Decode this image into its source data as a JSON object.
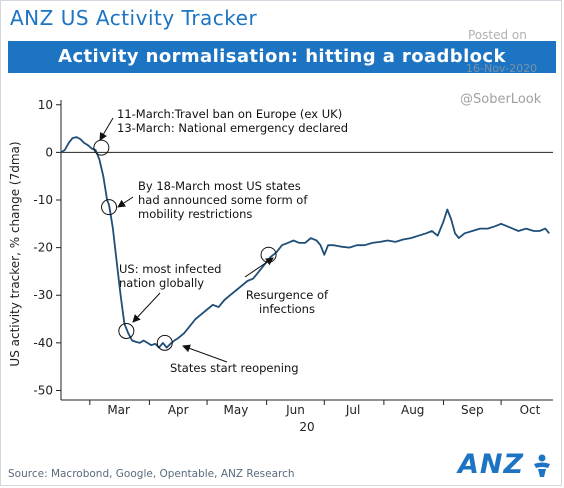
{
  "header": {
    "title": "ANZ US Activity Tracker",
    "banner": "Activity normalisation: hitting a roadblock"
  },
  "watermark": {
    "posted": "Posted on",
    "date": "16-Nov-2020",
    "handle": "@SoberLook"
  },
  "footer": {
    "source": "Source: Macrobond, Google, Opentable, ANZ Research",
    "logo": "ANZ"
  },
  "colors": {
    "brand_blue": "#1c74c2",
    "line": "#1f4e79"
  },
  "chart_data": {
    "type": "line",
    "title": "",
    "xlabel": "20",
    "ylabel": "US activity tracker, % change (7dma)",
    "ylim": [
      -52,
      11
    ],
    "yticks": [
      10,
      0,
      -10,
      -20,
      -30,
      -40,
      -50
    ],
    "ytick_labels": [
      "10",
      "0",
      "-10",
      "-20",
      "-30",
      "-40",
      "-50"
    ],
    "month_labels": [
      "Mar",
      "Apr",
      "May",
      "Jun",
      "Jul",
      "Aug",
      "Sep",
      "Oct"
    ],
    "x_range": [
      "2020-02-15",
      "2020-10-28"
    ],
    "grid": false,
    "series": [
      {
        "name": "",
        "points": [
          [
            "2020-02-15",
            0.0
          ],
          [
            "2020-02-17",
            0.5
          ],
          [
            "2020-02-19",
            2.0
          ],
          [
            "2020-02-21",
            3.0
          ],
          [
            "2020-02-23",
            3.2
          ],
          [
            "2020-02-25",
            2.8
          ],
          [
            "2020-02-27",
            2.0
          ],
          [
            "2020-02-29",
            1.5
          ],
          [
            "2020-03-02",
            0.8
          ],
          [
            "2020-03-04",
            0.5
          ],
          [
            "2020-03-06",
            -1.5
          ],
          [
            "2020-03-08",
            -5.0
          ],
          [
            "2020-03-10",
            -10.0
          ],
          [
            "2020-03-11",
            -11.0
          ],
          [
            "2020-03-12",
            -13.5
          ],
          [
            "2020-03-13",
            -16.0
          ],
          [
            "2020-03-15",
            -23.0
          ],
          [
            "2020-03-17",
            -30.0
          ],
          [
            "2020-03-19",
            -36.0
          ],
          [
            "2020-03-21",
            -38.0
          ],
          [
            "2020-03-23",
            -39.5
          ],
          [
            "2020-03-25",
            -39.8
          ],
          [
            "2020-03-27",
            -40.0
          ],
          [
            "2020-03-29",
            -39.5
          ],
          [
            "2020-03-31",
            -40.0
          ],
          [
            "2020-04-02",
            -40.5
          ],
          [
            "2020-04-04",
            -40.2
          ],
          [
            "2020-04-06",
            -41.0
          ],
          [
            "2020-04-08",
            -40.0
          ],
          [
            "2020-04-10",
            -41.0
          ],
          [
            "2020-04-12",
            -40.2
          ],
          [
            "2020-04-14",
            -39.5
          ],
          [
            "2020-04-16",
            -39.0
          ],
          [
            "2020-04-19",
            -38.0
          ],
          [
            "2020-04-22",
            -36.5
          ],
          [
            "2020-04-25",
            -35.0
          ],
          [
            "2020-04-28",
            -34.0
          ],
          [
            "2020-05-01",
            -33.0
          ],
          [
            "2020-05-04",
            -32.0
          ],
          [
            "2020-05-07",
            -32.5
          ],
          [
            "2020-05-10",
            -31.0
          ],
          [
            "2020-05-13",
            -30.0
          ],
          [
            "2020-05-16",
            -29.0
          ],
          [
            "2020-05-19",
            -28.0
          ],
          [
            "2020-05-22",
            -27.0
          ],
          [
            "2020-05-25",
            -26.5
          ],
          [
            "2020-05-28",
            -25.0
          ],
          [
            "2020-05-31",
            -23.5
          ],
          [
            "2020-06-03",
            -22.0
          ],
          [
            "2020-06-06",
            -21.0
          ],
          [
            "2020-06-09",
            -19.5
          ],
          [
            "2020-06-12",
            -19.0
          ],
          [
            "2020-06-15",
            -18.5
          ],
          [
            "2020-06-18",
            -19.0
          ],
          [
            "2020-06-21",
            -19.0
          ],
          [
            "2020-06-24",
            -18.0
          ],
          [
            "2020-06-27",
            -18.5
          ],
          [
            "2020-06-29",
            -19.5
          ],
          [
            "2020-07-01",
            -21.5
          ],
          [
            "2020-07-03",
            -19.5
          ],
          [
            "2020-07-06",
            -19.5
          ],
          [
            "2020-07-10",
            -19.8
          ],
          [
            "2020-07-14",
            -20.0
          ],
          [
            "2020-07-18",
            -19.5
          ],
          [
            "2020-07-22",
            -19.5
          ],
          [
            "2020-07-26",
            -19.0
          ],
          [
            "2020-07-30",
            -18.8
          ],
          [
            "2020-08-03",
            -18.5
          ],
          [
            "2020-08-07",
            -18.8
          ],
          [
            "2020-08-11",
            -18.3
          ],
          [
            "2020-08-15",
            -18.0
          ],
          [
            "2020-08-19",
            -17.5
          ],
          [
            "2020-08-23",
            -17.0
          ],
          [
            "2020-08-26",
            -16.5
          ],
          [
            "2020-08-29",
            -17.5
          ],
          [
            "2020-09-01",
            -14.5
          ],
          [
            "2020-09-03",
            -12.0
          ],
          [
            "2020-09-05",
            -14.0
          ],
          [
            "2020-09-07",
            -17.0
          ],
          [
            "2020-09-09",
            -18.0
          ],
          [
            "2020-09-12",
            -17.0
          ],
          [
            "2020-09-16",
            -16.5
          ],
          [
            "2020-09-20",
            -16.0
          ],
          [
            "2020-09-24",
            -16.0
          ],
          [
            "2020-09-28",
            -15.5
          ],
          [
            "2020-10-01",
            -15.0
          ],
          [
            "2020-10-04",
            -15.5
          ],
          [
            "2020-10-07",
            -16.0
          ],
          [
            "2020-10-10",
            -16.5
          ],
          [
            "2020-10-14",
            -16.0
          ],
          [
            "2020-10-18",
            -16.5
          ],
          [
            "2020-10-21",
            -16.5
          ],
          [
            "2020-10-24",
            -16.0
          ],
          [
            "2020-10-26",
            -17.0
          ]
        ]
      }
    ],
    "markers": [
      {
        "date": "2020-03-07",
        "y": 1.0
      },
      {
        "date": "2020-03-11",
        "y": -11.5
      },
      {
        "date": "2020-03-20",
        "y": -37.5
      },
      {
        "date": "2020-04-09",
        "y": -40.0
      },
      {
        "date": "2020-06-02",
        "y": -21.5
      }
    ],
    "annotations": [
      {
        "id": "ann-travel",
        "lines": [
          "11-March:Travel ban on Europe (ex UK)",
          "13-March: National emergency declared"
        ]
      },
      {
        "id": "ann-states",
        "lines": [
          "By 18-March most US states",
          "had announced some form of",
          "mobility restrictions"
        ]
      },
      {
        "id": "ann-infected",
        "lines": [
          "US: most infected",
          "nation globally"
        ]
      },
      {
        "id": "ann-resurgence",
        "lines": [
          "Resurgence of",
          "infections"
        ]
      },
      {
        "id": "ann-reopen",
        "lines": [
          "States start reopening"
        ]
      }
    ]
  }
}
